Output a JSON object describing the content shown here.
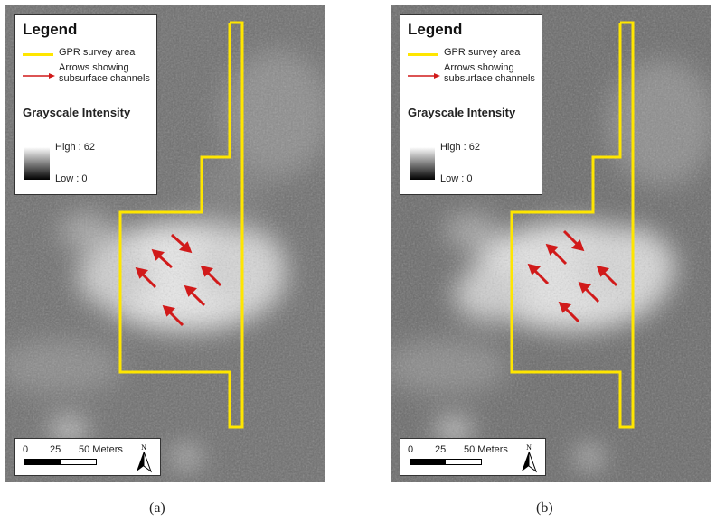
{
  "colors": {
    "survey_outline": "#ffe600",
    "arrow": "#d11a1a"
  },
  "panels": [
    {
      "id": "a",
      "caption": "(a)",
      "legend": {
        "title": "Legend",
        "gpr_label": "GPR survey area",
        "arrow_label": "Arrows showing subsurface channels",
        "grayscale_title": "Grayscale Intensity",
        "high_label": "High : 62",
        "low_label": "Low : 0"
      },
      "scale_bar": {
        "tick_0": "0",
        "tick_25": "25",
        "tick_50": "50 Meters",
        "north_label": "N"
      }
    },
    {
      "id": "b",
      "caption": "(b)",
      "legend": {
        "title": "Legend",
        "gpr_label": "GPR survey area",
        "arrow_label": "Arrows showing subsurface channels",
        "grayscale_title": "Grayscale Intensity",
        "high_label": "High : 62",
        "low_label": "Low : 0"
      },
      "scale_bar": {
        "tick_0": "0",
        "tick_25": "25",
        "tick_50": "50 Meters",
        "north_label": "N"
      }
    }
  ]
}
